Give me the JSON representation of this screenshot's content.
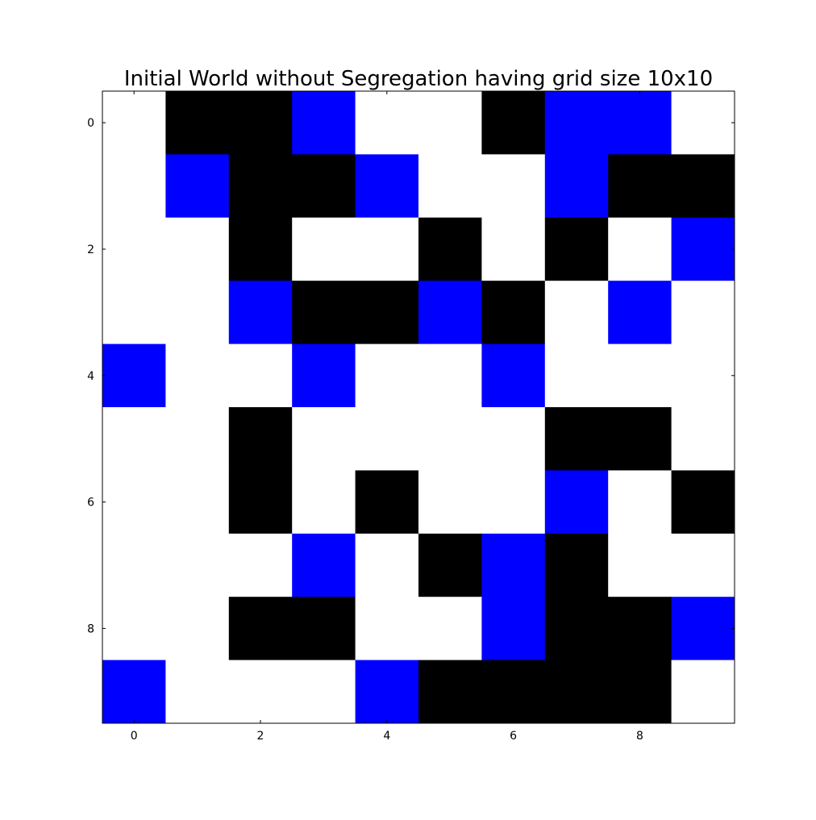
{
  "chart_data": {
    "type": "heatmap",
    "title": "Initial World without Segregation having grid size 10x10",
    "xlabel": "",
    "ylabel": "",
    "xlim": [
      -0.5,
      9.5
    ],
    "ylim": [
      9.5,
      -0.5
    ],
    "y_axis_inverted": true,
    "grid": false,
    "xticks": [
      0,
      2,
      4,
      6,
      8
    ],
    "yticks": [
      0,
      2,
      4,
      6,
      8
    ],
    "xtick_labels": [
      "0",
      "2",
      "4",
      "6",
      "8"
    ],
    "ytick_labels": [
      "0",
      "2",
      "4",
      "6",
      "8"
    ],
    "value_legend": {
      "0": "empty",
      "1": "black agent",
      "2": "blue agent"
    },
    "colors": {
      "0": "#ffffff",
      "1": "#000000",
      "2": "#0000ff"
    },
    "grid_values": [
      [
        0,
        1,
        1,
        2,
        0,
        0,
        1,
        2,
        2,
        0
      ],
      [
        0,
        2,
        1,
        1,
        2,
        0,
        0,
        2,
        1,
        1
      ],
      [
        0,
        0,
        1,
        0,
        0,
        1,
        0,
        1,
        0,
        2
      ],
      [
        0,
        0,
        2,
        1,
        1,
        2,
        1,
        0,
        2,
        0
      ],
      [
        2,
        0,
        0,
        2,
        0,
        0,
        2,
        0,
        0,
        0
      ],
      [
        0,
        0,
        1,
        0,
        0,
        0,
        0,
        1,
        1,
        0
      ],
      [
        0,
        0,
        1,
        0,
        1,
        0,
        0,
        2,
        0,
        1
      ],
      [
        0,
        0,
        0,
        2,
        0,
        1,
        2,
        1,
        0,
        0
      ],
      [
        0,
        0,
        1,
        1,
        0,
        0,
        2,
        1,
        1,
        2
      ],
      [
        2,
        0,
        0,
        0,
        2,
        1,
        1,
        1,
        1,
        0
      ]
    ]
  }
}
